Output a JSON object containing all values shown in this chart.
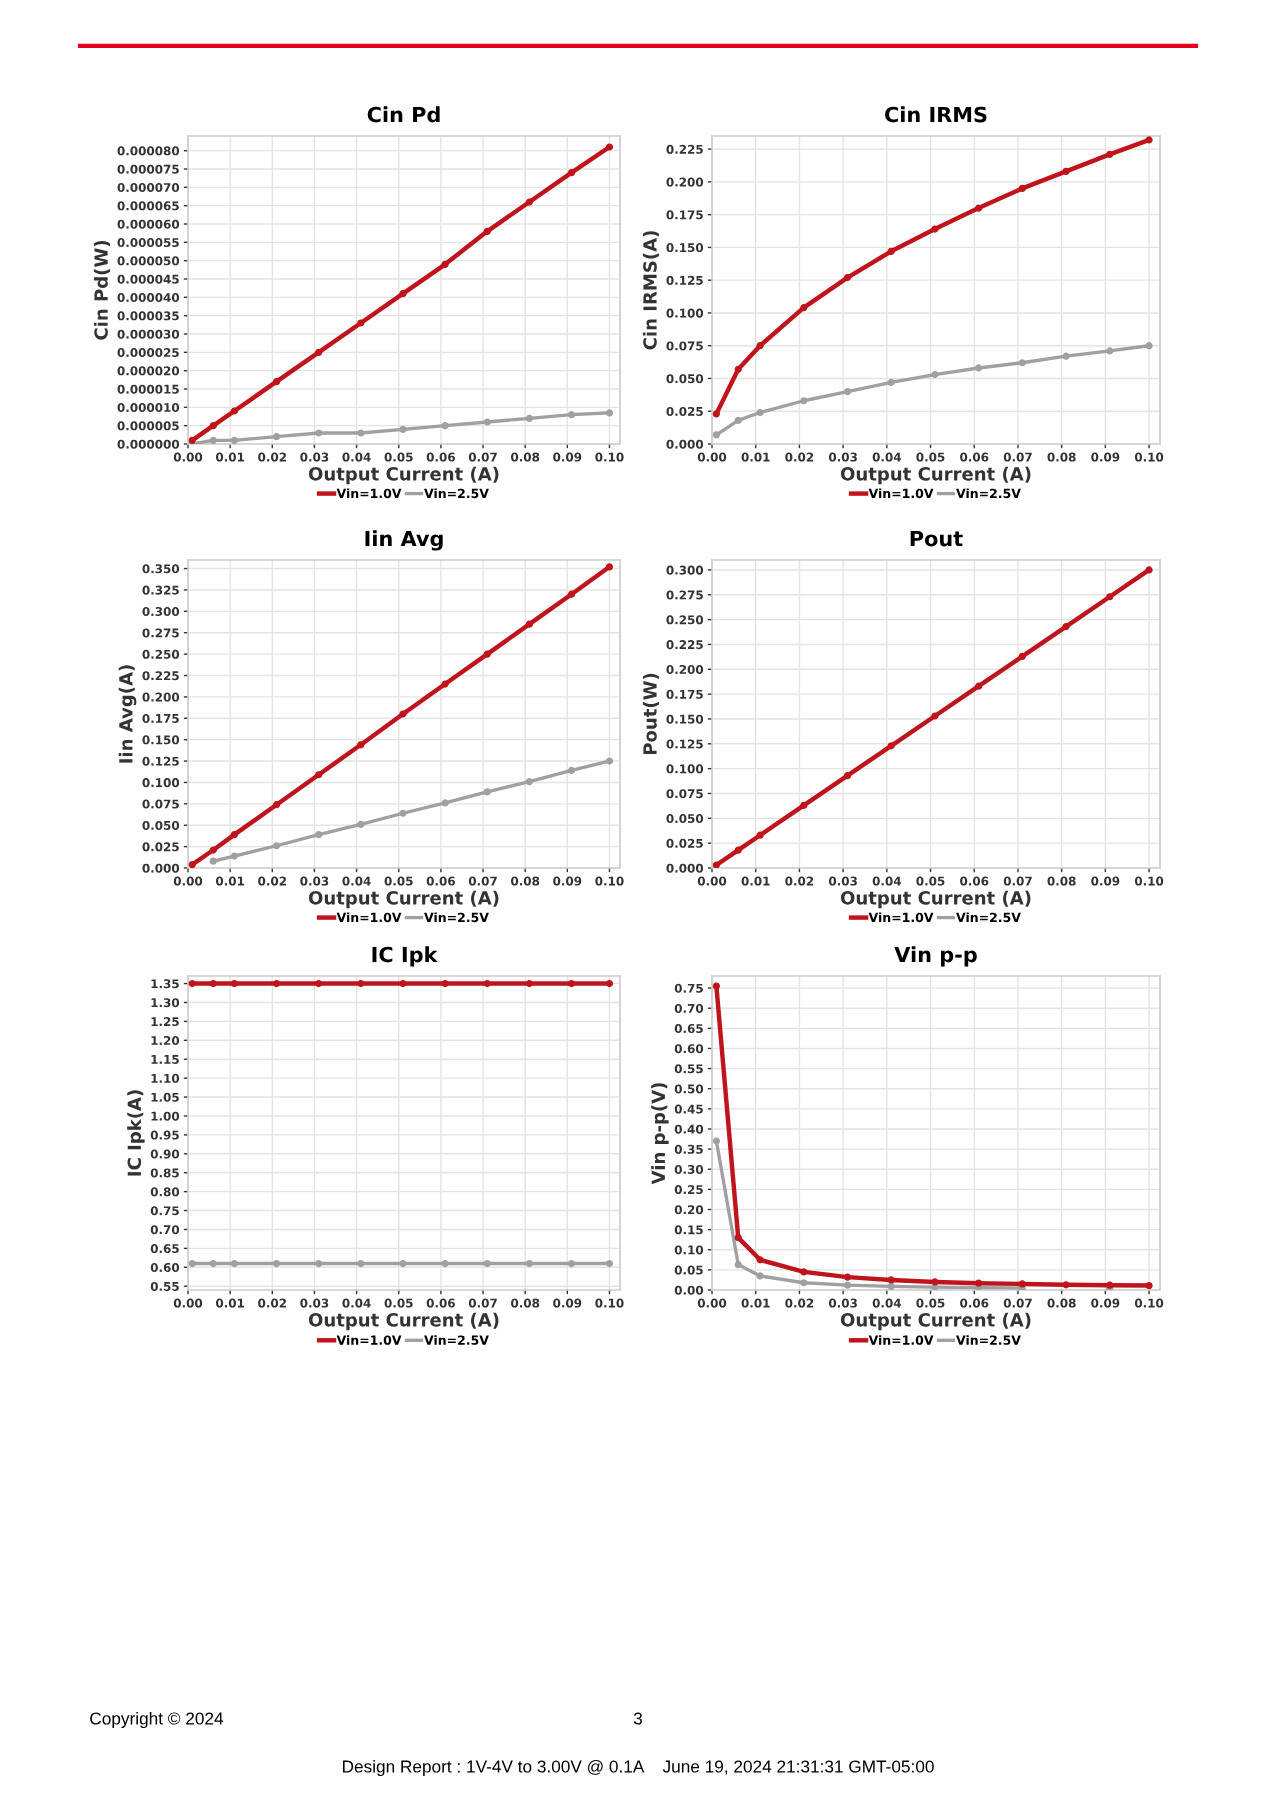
{
  "chart_data": [
    {
      "type": "line",
      "title": "Cin Pd",
      "xlabel": "Output Current (A)",
      "ylabel": "Cin Pd(W)",
      "x": [
        0.001,
        0.006,
        0.011,
        0.021,
        0.031,
        0.041,
        0.051,
        0.061,
        0.071,
        0.081,
        0.091,
        0.1
      ],
      "series": [
        {
          "name": "Vin=1.0V",
          "color": "#c0141c",
          "values": [
            1e-06,
            5e-06,
            9e-06,
            1.7e-05,
            2.5e-05,
            3.3e-05,
            4.1e-05,
            4.9e-05,
            5.8e-05,
            6.6e-05,
            7.4e-05,
            8.1e-05
          ]
        },
        {
          "name": "Vin=2.5V",
          "color": "#a0a0a0",
          "values": [
            0.0,
            1e-06,
            1e-06,
            2e-06,
            3e-06,
            3e-06,
            4e-06,
            5e-06,
            6e-06,
            7e-06,
            8e-06,
            8.5e-06
          ]
        }
      ],
      "xlim": [
        0,
        0.1025
      ],
      "xticks": [
        {
          "value": 0,
          "label": "0.00"
        },
        {
          "value": 0.01,
          "label": "0.01"
        },
        {
          "value": 0.02,
          "label": "0.02"
        },
        {
          "value": 0.03,
          "label": "0.03"
        },
        {
          "value": 0.04,
          "label": "0.04"
        },
        {
          "value": 0.05,
          "label": "0.05"
        },
        {
          "value": 0.06,
          "label": "0.06"
        },
        {
          "value": 0.07,
          "label": "0.07"
        },
        {
          "value": 0.08,
          "label": "0.08"
        },
        {
          "value": 0.09,
          "label": "0.09"
        },
        {
          "value": 0.1,
          "label": "0.10"
        }
      ],
      "ylim": [
        0,
        8.4e-05
      ],
      "yticks": [
        {
          "value": 0,
          "label": "0.000000"
        },
        {
          "value": 5e-06,
          "label": "0.000005"
        },
        {
          "value": 1e-05,
          "label": "0.000010"
        },
        {
          "value": 1.5e-05,
          "label": "0.000015"
        },
        {
          "value": 2e-05,
          "label": "0.000020"
        },
        {
          "value": 2.5e-05,
          "label": "0.000025"
        },
        {
          "value": 3e-05,
          "label": "0.000030"
        },
        {
          "value": 3.5e-05,
          "label": "0.000035"
        },
        {
          "value": 4e-05,
          "label": "0.000040"
        },
        {
          "value": 4.5e-05,
          "label": "0.000045"
        },
        {
          "value": 5e-05,
          "label": "0.000050"
        },
        {
          "value": 5.5e-05,
          "label": "0.000055"
        },
        {
          "value": 6e-05,
          "label": "0.000060"
        },
        {
          "value": 6.5e-05,
          "label": "0.000065"
        },
        {
          "value": 7e-05,
          "label": "0.000070"
        },
        {
          "value": 7.5e-05,
          "label": "0.000075"
        },
        {
          "value": 8e-05,
          "label": "0.000080"
        }
      ],
      "grid": true,
      "legend": "bottom",
      "marker": "circle",
      "line_style": "solid"
    },
    {
      "type": "line",
      "title": "Cin IRMS",
      "xlabel": "Output Current (A)",
      "ylabel": "Cin IRMS(A)",
      "x": [
        0.001,
        0.006,
        0.011,
        0.021,
        0.031,
        0.041,
        0.051,
        0.061,
        0.071,
        0.081,
        0.091,
        0.1
      ],
      "series": [
        {
          "name": "Vin=1.0V",
          "color": "#c0141c",
          "values": [
            0.023,
            0.057,
            0.075,
            0.104,
            0.127,
            0.147,
            0.164,
            0.18,
            0.195,
            0.208,
            0.221,
            0.232
          ]
        },
        {
          "name": "Vin=2.5V",
          "color": "#a0a0a0",
          "values": [
            0.007,
            0.018,
            0.024,
            0.033,
            0.04,
            0.047,
            0.053,
            0.058,
            0.062,
            0.067,
            0.071,
            0.075
          ]
        }
      ],
      "xlim": [
        0,
        0.1025
      ],
      "xticks": [
        {
          "value": 0,
          "label": "0.00"
        },
        {
          "value": 0.01,
          "label": "0.01"
        },
        {
          "value": 0.02,
          "label": "0.02"
        },
        {
          "value": 0.03,
          "label": "0.03"
        },
        {
          "value": 0.04,
          "label": "0.04"
        },
        {
          "value": 0.05,
          "label": "0.05"
        },
        {
          "value": 0.06,
          "label": "0.06"
        },
        {
          "value": 0.07,
          "label": "0.07"
        },
        {
          "value": 0.08,
          "label": "0.08"
        },
        {
          "value": 0.09,
          "label": "0.09"
        },
        {
          "value": 0.1,
          "label": "0.10"
        }
      ],
      "ylim": [
        0,
        0.235
      ],
      "yticks": [
        {
          "value": 0,
          "label": "0.000"
        },
        {
          "value": 0.025,
          "label": "0.025"
        },
        {
          "value": 0.05,
          "label": "0.050"
        },
        {
          "value": 0.075,
          "label": "0.075"
        },
        {
          "value": 0.1,
          "label": "0.100"
        },
        {
          "value": 0.125,
          "label": "0.125"
        },
        {
          "value": 0.15,
          "label": "0.150"
        },
        {
          "value": 0.175,
          "label": "0.175"
        },
        {
          "value": 0.2,
          "label": "0.200"
        },
        {
          "value": 0.225,
          "label": "0.225"
        }
      ],
      "grid": true,
      "legend": "bottom",
      "marker": "circle",
      "line_style": "solid"
    },
    {
      "type": "line",
      "title": "Iin Avg",
      "xlabel": "Output Current (A)",
      "ylabel": "Iin Avg(A)",
      "x": [
        0.001,
        0.006,
        0.011,
        0.021,
        0.031,
        0.041,
        0.051,
        0.061,
        0.071,
        0.081,
        0.091,
        0.1
      ],
      "series": [
        {
          "name": "Vin=1.0V",
          "color": "#c0141c",
          "values": [
            0.004,
            0.021,
            0.039,
            0.074,
            0.109,
            0.144,
            0.18,
            0.215,
            0.25,
            0.285,
            0.32,
            0.352
          ]
        },
        {
          "name": "Vin=2.5V",
          "color": "#a0a0a0",
          "values": [
            null,
            0.008,
            0.014,
            0.026,
            0.039,
            0.051,
            0.064,
            0.076,
            0.089,
            0.101,
            0.114,
            0.125
          ]
        }
      ],
      "xlim": [
        0,
        0.1025
      ],
      "xticks": [
        {
          "value": 0,
          "label": "0.00"
        },
        {
          "value": 0.01,
          "label": "0.01"
        },
        {
          "value": 0.02,
          "label": "0.02"
        },
        {
          "value": 0.03,
          "label": "0.03"
        },
        {
          "value": 0.04,
          "label": "0.04"
        },
        {
          "value": 0.05,
          "label": "0.05"
        },
        {
          "value": 0.06,
          "label": "0.06"
        },
        {
          "value": 0.07,
          "label": "0.07"
        },
        {
          "value": 0.08,
          "label": "0.08"
        },
        {
          "value": 0.09,
          "label": "0.09"
        },
        {
          "value": 0.1,
          "label": "0.10"
        }
      ],
      "ylim": [
        0,
        0.36
      ],
      "yticks": [
        {
          "value": 0,
          "label": "0.000"
        },
        {
          "value": 0.025,
          "label": "0.025"
        },
        {
          "value": 0.05,
          "label": "0.050"
        },
        {
          "value": 0.075,
          "label": "0.075"
        },
        {
          "value": 0.1,
          "label": "0.100"
        },
        {
          "value": 0.125,
          "label": "0.125"
        },
        {
          "value": 0.15,
          "label": "0.150"
        },
        {
          "value": 0.175,
          "label": "0.175"
        },
        {
          "value": 0.2,
          "label": "0.200"
        },
        {
          "value": 0.225,
          "label": "0.225"
        },
        {
          "value": 0.25,
          "label": "0.250"
        },
        {
          "value": 0.275,
          "label": "0.275"
        },
        {
          "value": 0.3,
          "label": "0.300"
        },
        {
          "value": 0.325,
          "label": "0.325"
        },
        {
          "value": 0.35,
          "label": "0.350"
        }
      ],
      "grid": true,
      "legend": "bottom",
      "marker": "circle",
      "line_style": "solid"
    },
    {
      "type": "line",
      "title": "Pout",
      "xlabel": "Output Current (A)",
      "ylabel": "Pout(W)",
      "x": [
        0.001,
        0.006,
        0.011,
        0.021,
        0.031,
        0.041,
        0.051,
        0.061,
        0.071,
        0.081,
        0.091,
        0.1
      ],
      "series": [
        {
          "name": "Vin=1.0V",
          "color": "#c0141c",
          "values": [
            0.003,
            0.018,
            0.033,
            0.063,
            0.093,
            0.123,
            0.153,
            0.183,
            0.213,
            0.243,
            0.273,
            0.3
          ]
        },
        {
          "name": "Vin=2.5V",
          "color": "#a0a0a0",
          "values": [
            null,
            null,
            null,
            null,
            null,
            null,
            null,
            null,
            null,
            null,
            null,
            null
          ]
        }
      ],
      "xlim": [
        0,
        0.1025
      ],
      "xticks": [
        {
          "value": 0,
          "label": "0.00"
        },
        {
          "value": 0.01,
          "label": "0.01"
        },
        {
          "value": 0.02,
          "label": "0.02"
        },
        {
          "value": 0.03,
          "label": "0.03"
        },
        {
          "value": 0.04,
          "label": "0.04"
        },
        {
          "value": 0.05,
          "label": "0.05"
        },
        {
          "value": 0.06,
          "label": "0.06"
        },
        {
          "value": 0.07,
          "label": "0.07"
        },
        {
          "value": 0.08,
          "label": "0.08"
        },
        {
          "value": 0.09,
          "label": "0.09"
        },
        {
          "value": 0.1,
          "label": "0.10"
        }
      ],
      "ylim": [
        0,
        0.31
      ],
      "yticks": [
        {
          "value": 0,
          "label": "0.000"
        },
        {
          "value": 0.025,
          "label": "0.025"
        },
        {
          "value": 0.05,
          "label": "0.050"
        },
        {
          "value": 0.075,
          "label": "0.075"
        },
        {
          "value": 0.1,
          "label": "0.100"
        },
        {
          "value": 0.125,
          "label": "0.125"
        },
        {
          "value": 0.15,
          "label": "0.150"
        },
        {
          "value": 0.175,
          "label": "0.175"
        },
        {
          "value": 0.2,
          "label": "0.200"
        },
        {
          "value": 0.225,
          "label": "0.225"
        },
        {
          "value": 0.25,
          "label": "0.250"
        },
        {
          "value": 0.275,
          "label": "0.275"
        },
        {
          "value": 0.3,
          "label": "0.300"
        }
      ],
      "grid": true,
      "legend": "bottom",
      "marker": "circle",
      "line_style": "solid"
    },
    {
      "type": "line",
      "title": "IC Ipk",
      "xlabel": "Output Current (A)",
      "ylabel": "IC Ipk(A)",
      "x": [
        0.001,
        0.006,
        0.011,
        0.021,
        0.031,
        0.041,
        0.051,
        0.061,
        0.071,
        0.081,
        0.091,
        0.1
      ],
      "series": [
        {
          "name": "Vin=1.0V",
          "color": "#c0141c",
          "values": [
            1.35,
            1.35,
            1.35,
            1.35,
            1.35,
            1.35,
            1.35,
            1.35,
            1.35,
            1.35,
            1.35,
            1.35
          ]
        },
        {
          "name": "Vin=2.5V",
          "color": "#a0a0a0",
          "values": [
            0.61,
            0.61,
            0.61,
            0.61,
            0.61,
            0.61,
            0.61,
            0.61,
            0.61,
            0.61,
            0.61,
            0.61
          ]
        }
      ],
      "xlim": [
        0,
        0.1025
      ],
      "xticks": [
        {
          "value": 0,
          "label": "0.00"
        },
        {
          "value": 0.01,
          "label": "0.01"
        },
        {
          "value": 0.02,
          "label": "0.02"
        },
        {
          "value": 0.03,
          "label": "0.03"
        },
        {
          "value": 0.04,
          "label": "0.04"
        },
        {
          "value": 0.05,
          "label": "0.05"
        },
        {
          "value": 0.06,
          "label": "0.06"
        },
        {
          "value": 0.07,
          "label": "0.07"
        },
        {
          "value": 0.08,
          "label": "0.08"
        },
        {
          "value": 0.09,
          "label": "0.09"
        },
        {
          "value": 0.1,
          "label": "0.10"
        }
      ],
      "ylim": [
        0.54,
        1.37
      ],
      "yticks": [
        {
          "value": 0.55,
          "label": "0.55"
        },
        {
          "value": 0.6,
          "label": "0.60"
        },
        {
          "value": 0.65,
          "label": "0.65"
        },
        {
          "value": 0.7,
          "label": "0.70"
        },
        {
          "value": 0.75,
          "label": "0.75"
        },
        {
          "value": 0.8,
          "label": "0.80"
        },
        {
          "value": 0.85,
          "label": "0.85"
        },
        {
          "value": 0.9,
          "label": "0.90"
        },
        {
          "value": 0.95,
          "label": "0.95"
        },
        {
          "value": 1.0,
          "label": "1.00"
        },
        {
          "value": 1.05,
          "label": "1.05"
        },
        {
          "value": 1.1,
          "label": "1.10"
        },
        {
          "value": 1.15,
          "label": "1.15"
        },
        {
          "value": 1.2,
          "label": "1.20"
        },
        {
          "value": 1.25,
          "label": "1.25"
        },
        {
          "value": 1.3,
          "label": "1.30"
        },
        {
          "value": 1.35,
          "label": "1.35"
        }
      ],
      "grid": true,
      "legend": "bottom",
      "marker": "circle",
      "line_style": "solid"
    },
    {
      "type": "line",
      "title": "Vin p-p",
      "xlabel": "Output Current (A)",
      "ylabel": "Vin p-p(V)",
      "x": [
        0.001,
        0.006,
        0.011,
        0.021,
        0.031,
        0.041,
        0.051,
        0.061,
        0.071,
        0.081,
        0.091,
        0.1
      ],
      "series": [
        {
          "name": "Vin=1.0V",
          "color": "#c0141c",
          "values": [
            0.755,
            0.13,
            0.075,
            0.045,
            0.032,
            0.025,
            0.02,
            0.017,
            0.015,
            0.013,
            0.012,
            0.011
          ]
        },
        {
          "name": "Vin=2.5V",
          "color": "#a0a0a0",
          "values": [
            0.37,
            0.063,
            0.035,
            0.018,
            0.012,
            0.009,
            0.007,
            0.006,
            0.005,
            null,
            0.004,
            null
          ]
        }
      ],
      "xlim": [
        0,
        0.1025
      ],
      "xticks": [
        {
          "value": 0,
          "label": "0.00"
        },
        {
          "value": 0.01,
          "label": "0.01"
        },
        {
          "value": 0.02,
          "label": "0.02"
        },
        {
          "value": 0.03,
          "label": "0.03"
        },
        {
          "value": 0.04,
          "label": "0.04"
        },
        {
          "value": 0.05,
          "label": "0.05"
        },
        {
          "value": 0.06,
          "label": "0.06"
        },
        {
          "value": 0.07,
          "label": "0.07"
        },
        {
          "value": 0.08,
          "label": "0.08"
        },
        {
          "value": 0.09,
          "label": "0.09"
        },
        {
          "value": 0.1,
          "label": "0.10"
        }
      ],
      "ylim": [
        0,
        0.78
      ],
      "yticks": [
        {
          "value": 0,
          "label": "0.00"
        },
        {
          "value": 0.05,
          "label": "0.05"
        },
        {
          "value": 0.1,
          "label": "0.10"
        },
        {
          "value": 0.15,
          "label": "0.15"
        },
        {
          "value": 0.2,
          "label": "0.20"
        },
        {
          "value": 0.25,
          "label": "0.25"
        },
        {
          "value": 0.3,
          "label": "0.30"
        },
        {
          "value": 0.35,
          "label": "0.35"
        },
        {
          "value": 0.4,
          "label": "0.40"
        },
        {
          "value": 0.45,
          "label": "0.45"
        },
        {
          "value": 0.5,
          "label": "0.50"
        },
        {
          "value": 0.55,
          "label": "0.55"
        },
        {
          "value": 0.6,
          "label": "0.60"
        },
        {
          "value": 0.65,
          "label": "0.65"
        },
        {
          "value": 0.7,
          "label": "0.70"
        },
        {
          "value": 0.75,
          "label": "0.75"
        }
      ],
      "grid": true,
      "legend": "bottom",
      "marker": "circle",
      "line_style": "solid",
      "annotations": [
        "Copyright © 2024",
        "3",
        "Design Report : 1V-4V to 3.00V @ 0.1A    June 19, 2024 21:31:31 GMT-05:00"
      ]
    }
  ]
}
